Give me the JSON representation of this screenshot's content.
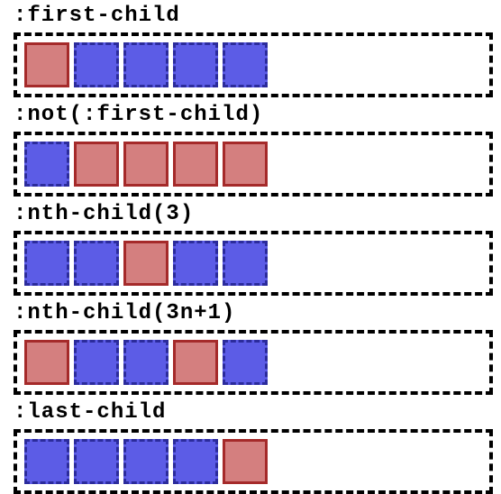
{
  "sections": [
    {
      "label": ":first-child",
      "matched": [
        true,
        false,
        false,
        false,
        false
      ]
    },
    {
      "label": ":not(:first-child)",
      "matched": [
        false,
        true,
        true,
        true,
        true
      ]
    },
    {
      "label": ":nth-child(3)",
      "matched": [
        false,
        false,
        true,
        false,
        false
      ]
    },
    {
      "label": ":nth-child(3n+1)",
      "matched": [
        true,
        false,
        false,
        true,
        false
      ]
    },
    {
      "label": ":last-child",
      "matched": [
        false,
        false,
        false,
        false,
        true
      ]
    }
  ]
}
